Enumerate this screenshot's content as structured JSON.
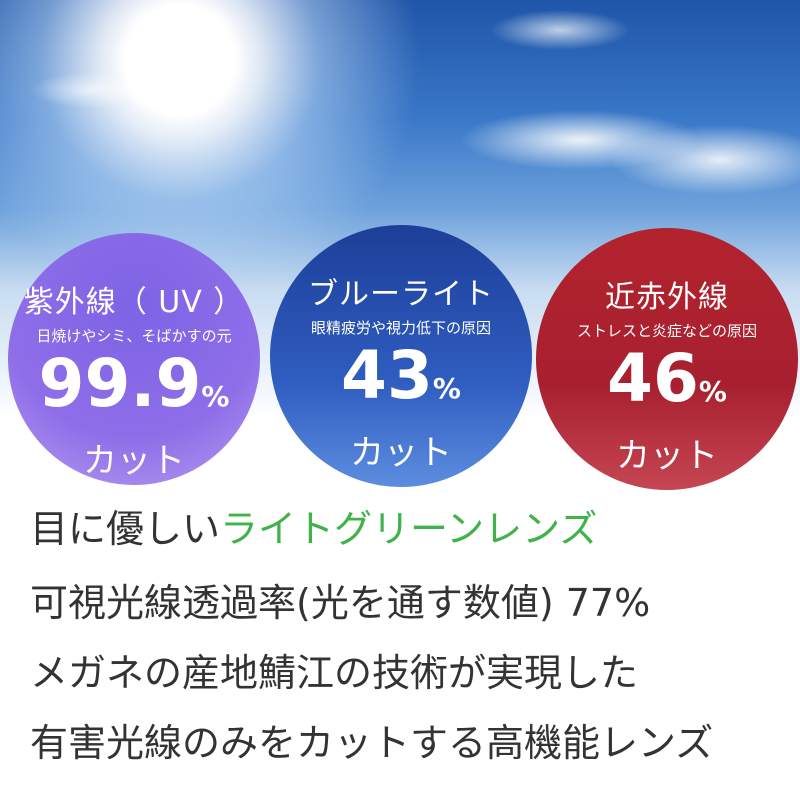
{
  "circles": [
    {
      "title": "紫外線（ UV ）",
      "subtitle": "日焼けやシミ、そばかすの元",
      "value": "99.9",
      "unit": "%",
      "label": "カット",
      "color": "#8a6ae8"
    },
    {
      "title": "ブルーライト",
      "subtitle": "眼精疲労や視力低下の原因",
      "value": "43",
      "unit": "%",
      "label": "カット",
      "color": "#2a53b3"
    },
    {
      "title": "近赤外線",
      "subtitle": "ストレスと炎症などの原因",
      "value": "46",
      "unit": "%",
      "label": "カット",
      "color": "#ad2230"
    }
  ],
  "lines": {
    "l1a": "目に優しい",
    "l1b": "ライトグリーンレンズ",
    "l2": "可視光線透過率(光を通す数値) 77%",
    "l3": "メガネの産地鯖江の技術が実現した",
    "l4": "有害光線のみをカットする高機能レンズ"
  },
  "accent_green": "#3fb34a"
}
